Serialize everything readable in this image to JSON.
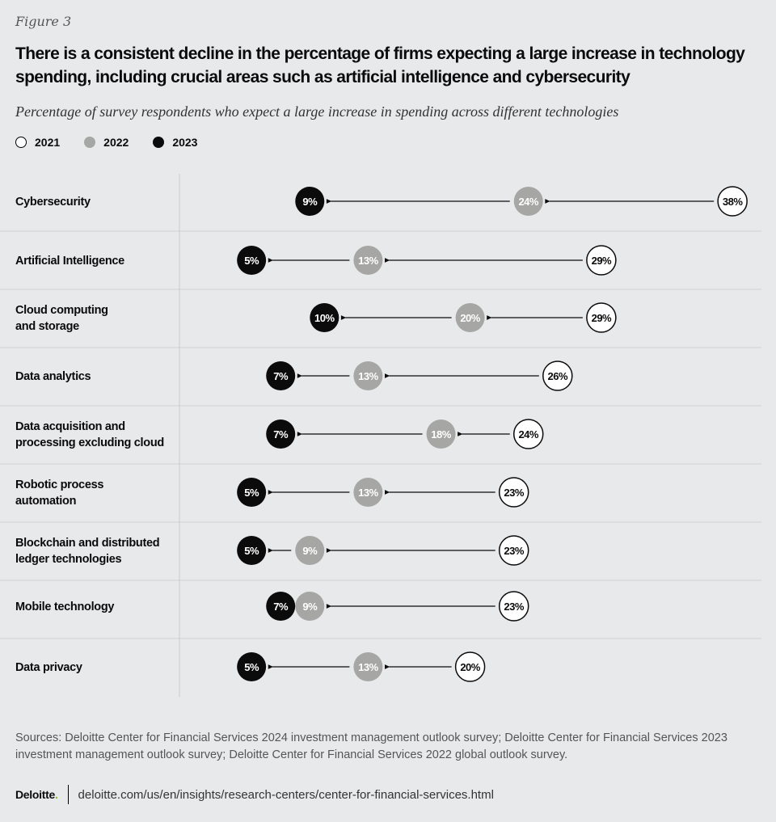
{
  "figure_label": "Figure 3",
  "title": "There is a consistent decline in the percentage of firms expecting a large increase in technology spending, including crucial areas such as artificial intelligence and cybersecurity",
  "subtitle": "Percentage of survey respondents who expect a large increase in spending across different technologies",
  "colors": {
    "background": "#e8e9eb",
    "y2021": "#ffffff",
    "y2022": "#a6a6a4",
    "y2023": "#0b0b0b"
  },
  "chart_data": {
    "type": "dumbbell-arrow",
    "legend_position": "top-left",
    "series": [
      {
        "name": "2021",
        "values": [
          38,
          29,
          29,
          26,
          24,
          23,
          23,
          23,
          20
        ]
      },
      {
        "name": "2022",
        "values": [
          24,
          13,
          20,
          13,
          18,
          13,
          9,
          9,
          13
        ]
      },
      {
        "name": "2023",
        "values": [
          9,
          5,
          10,
          7,
          7,
          5,
          5,
          7,
          5
        ]
      }
    ],
    "categories": [
      "Cybersecurity",
      "Artificial Intelligence",
      "Cloud computing\nand storage",
      "Data analytics",
      "Data acquisition and\nprocessing excluding cloud",
      "Robotic process\nautomation",
      "Blockchain and distributed\nledger technologies",
      "Mobile technology",
      "Data privacy"
    ],
    "value_suffix": "%",
    "xlim": [
      0,
      41
    ],
    "grid": false
  },
  "sources": "Sources: Deloitte Center for Financial Services 2024 investment management outlook survey; Deloitte Center for Financial Services 2023 investment management outlook survey; Deloitte Center for Financial Services 2022 global outlook survey.",
  "footer": {
    "logo": "Deloitte",
    "logo_dot": ".",
    "url": "deloitte.com/us/en/insights/research-centers/center-for-financial-services.html"
  }
}
